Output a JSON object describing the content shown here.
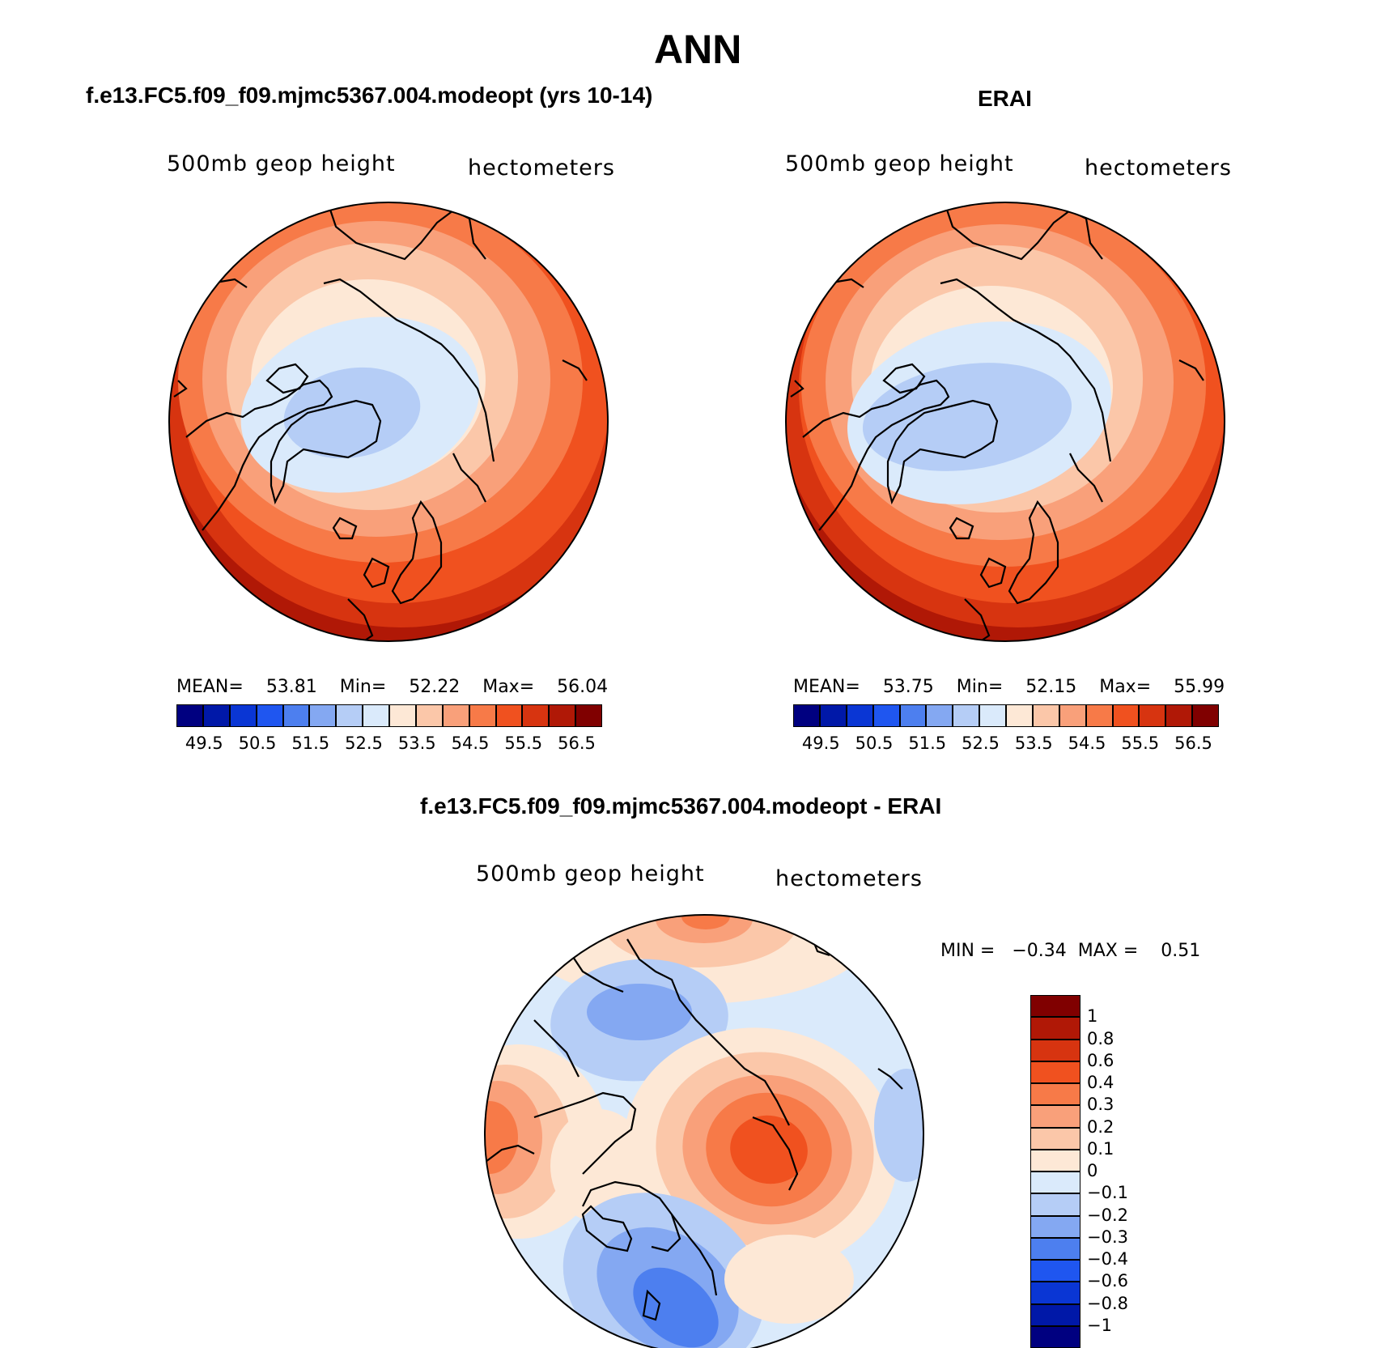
{
  "figure": {
    "title": "ANN"
  },
  "panels": [
    {
      "id": "model",
      "title": "f.e13.FC5.f09_f09.mjmc5367.004.modeopt (yrs 10-14)",
      "variable": "500mb  geop  height",
      "units": "hectometers",
      "stats": {
        "mean_label": "MEAN=",
        "mean": "53.81",
        "min_label": "Min=",
        "min": "52.22",
        "max_label": "Max=",
        "max": "56.04"
      }
    },
    {
      "id": "obs",
      "title": "ERAI",
      "variable": "500mb  geop  height",
      "units": "hectometers",
      "stats": {
        "mean_label": "MEAN=",
        "mean": "53.75",
        "min_label": "Min=",
        "min": "52.15",
        "max_label": "Max=",
        "max": "55.99"
      }
    },
    {
      "id": "diff",
      "title": "f.e13.FC5.f09_f09.mjmc5367.004.modeopt - ERAI",
      "variable": "500mb  geop  height",
      "units": "hectometers",
      "stats": {
        "min_label": "MIN =",
        "min": "−0.34",
        "max_label": "MAX =",
        "max": "0.51"
      }
    }
  ],
  "colorbars": {
    "abs": {
      "colors": [
        "#000080",
        "#0018a8",
        "#0a36d4",
        "#1f56f0",
        "#4d7fef",
        "#84a8f2",
        "#b5cdf6",
        "#daeafb",
        "#fde8d6",
        "#fbc7a9",
        "#f9a07a",
        "#f77a48",
        "#f0511f",
        "#d73410",
        "#b01806",
        "#800000"
      ],
      "ticks": [
        "49.5",
        "50.5",
        "51.5",
        "52.5",
        "53.5",
        "54.5",
        "55.5",
        "56.5"
      ]
    },
    "diff": {
      "colors": [
        "#800000",
        "#b01806",
        "#d73410",
        "#f0511f",
        "#f77a48",
        "#f9a07a",
        "#fbc7a9",
        "#fde8d6",
        "#daeafb",
        "#b5cdf6",
        "#84a8f2",
        "#4d7fef",
        "#1f56f0",
        "#0a36d4",
        "#0018a8",
        "#000080"
      ],
      "ticks": [
        "1",
        "0.8",
        "0.6",
        "0.4",
        "0.3",
        "0.2",
        "0.1",
        "0",
        "−0.1",
        "−0.2",
        "−0.3",
        "−0.4",
        "−0.6",
        "−0.8",
        "−1"
      ]
    }
  }
}
